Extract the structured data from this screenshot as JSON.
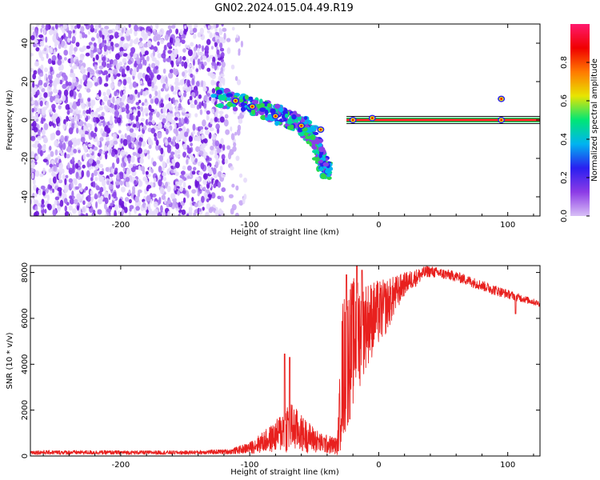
{
  "title": "GN02.2024.015.04.49.R19",
  "colors": {
    "snr_line": "#e8201e",
    "marker_line": "#111111",
    "dots": [
      "#e7dcfb",
      "#c7a6f5",
      "#a46ef0",
      "#8a3fe8",
      "#6b14d8"
    ],
    "colorbar": [
      "#d8bff6",
      "#8c3be6",
      "#2a1ff0",
      "#00b4f0",
      "#00e676",
      "#e8e500",
      "#ff7a00",
      "#f00000",
      "#ff1a6e"
    ]
  },
  "chart_data": [
    {
      "type": "heatmap",
      "name": "spectrogram",
      "xlabel": "Height of straight line (km)",
      "ylabel": "Frequency (Hz)",
      "xlim": [
        -270,
        125
      ],
      "ylim": [
        -50,
        50
      ],
      "xticks": [
        -200,
        -100,
        0,
        100
      ],
      "yticks": [
        -40,
        -20,
        0,
        20,
        40
      ],
      "colorbar": {
        "label": "Normalized spectral amplitude",
        "range": [
          0,
          1
        ],
        "ticks": [
          0.0,
          0.2,
          0.4,
          0.6,
          0.8
        ],
        "tick_labels": [
          "0.0",
          "0.2",
          "0.4",
          "0.6",
          "0.8"
        ]
      },
      "features": {
        "noise_region_x": [
          -270,
          -103
        ],
        "dense_noise_x": [
          -270,
          -120
        ],
        "horizontal_line_y": 0,
        "horizontal_line_x": [
          -25,
          125
        ],
        "descending_band": [
          [
            -125,
            12
          ],
          [
            -100,
            8
          ],
          [
            -80,
            3
          ],
          [
            -60,
            -2
          ],
          [
            -50,
            -8
          ],
          [
            -45,
            -20
          ],
          [
            -40,
            -27
          ]
        ],
        "bright_points": [
          [
            -111,
            10
          ],
          [
            -98,
            7
          ],
          [
            -80,
            2
          ],
          [
            -60,
            -3
          ],
          [
            -45,
            -5
          ],
          [
            -20,
            0
          ],
          [
            -5,
            1
          ],
          [
            95,
            11
          ],
          [
            95,
            0
          ]
        ]
      }
    },
    {
      "type": "line",
      "name": "snr",
      "xlabel": "Height of straight line (km)",
      "ylabel": "SNR (10 * v/v)",
      "xlim": [
        -270,
        125
      ],
      "ylim": [
        0,
        8300
      ],
      "xticks": [
        -200,
        -100,
        0,
        100
      ],
      "yticks": [
        0,
        2000,
        4000,
        6000,
        8000
      ],
      "envelope": [
        {
          "x": -270,
          "lo": 60,
          "hi": 250
        },
        {
          "x": -150,
          "lo": 60,
          "hi": 230
        },
        {
          "x": -115,
          "lo": 80,
          "hi": 300
        },
        {
          "x": -100,
          "lo": 100,
          "hi": 600
        },
        {
          "x": -80,
          "lo": 150,
          "hi": 1500
        },
        {
          "x": -70,
          "lo": 100,
          "hi": 2500
        },
        {
          "x": -60,
          "lo": 150,
          "hi": 1800
        },
        {
          "x": -45,
          "lo": 100,
          "hi": 1000
        },
        {
          "x": -32,
          "lo": 50,
          "hi": 800
        },
        {
          "x": -28,
          "lo": 300,
          "hi": 7000
        },
        {
          "x": -20,
          "lo": 2000,
          "hi": 7800
        },
        {
          "x": -10,
          "lo": 3800,
          "hi": 7600
        },
        {
          "x": 5,
          "lo": 5200,
          "hi": 7700
        },
        {
          "x": 20,
          "lo": 7000,
          "hi": 8000
        },
        {
          "x": 38,
          "lo": 7800,
          "hi": 8300
        },
        {
          "x": 60,
          "lo": 7600,
          "hi": 8050
        },
        {
          "x": 90,
          "lo": 7000,
          "hi": 7450
        },
        {
          "x": 125,
          "lo": 6500,
          "hi": 6750
        }
      ],
      "spikes": [
        {
          "x": -73,
          "y": 4450
        },
        {
          "x": -69,
          "y": 4300
        },
        {
          "x": -25,
          "y": 7900
        },
        {
          "x": -17,
          "y": 8300
        },
        {
          "x": -13,
          "y": 8100
        },
        {
          "x": 106,
          "y": 6200
        }
      ]
    }
  ]
}
